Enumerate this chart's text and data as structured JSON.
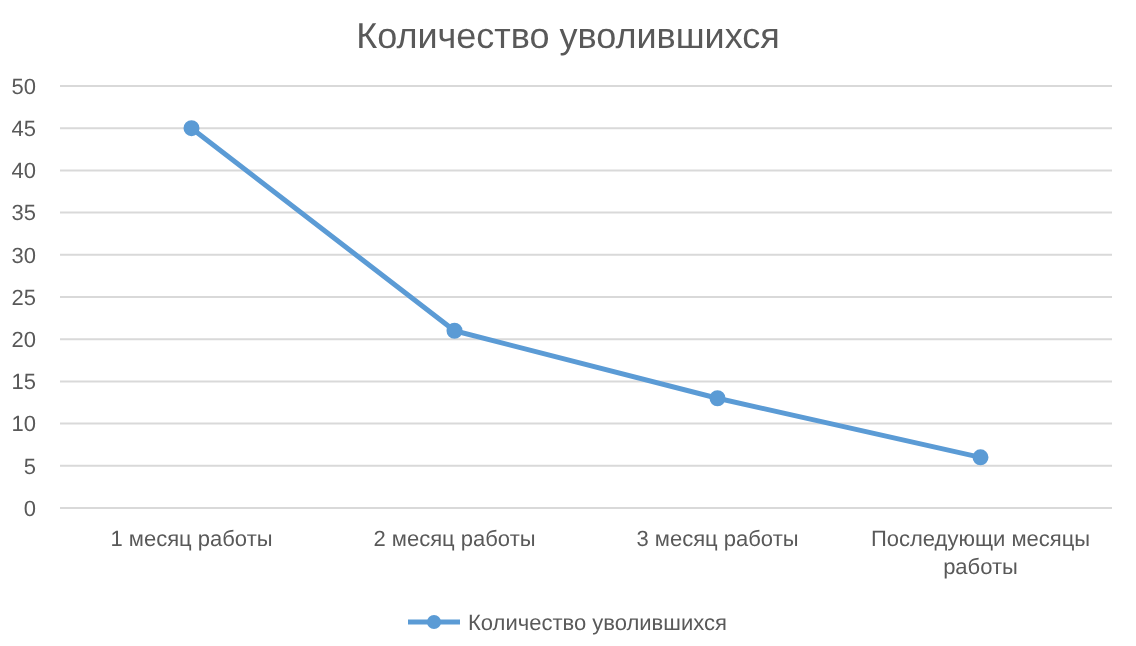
{
  "chart_data": {
    "type": "line",
    "title": "Количество уволившихся",
    "categories": [
      "1 месяц работы",
      "2 месяц работы",
      "3 месяц работы",
      "Последующи месяцы работы"
    ],
    "series": [
      {
        "name": "Количество уволившихся",
        "color": "#5b9bd5",
        "values": [
          45,
          21,
          13,
          6
        ]
      }
    ],
    "ylim": [
      0,
      50
    ],
    "yticks": [
      0,
      5,
      10,
      15,
      20,
      25,
      30,
      35,
      40,
      45,
      50
    ],
    "grid": "y",
    "legend": "bottom",
    "marker": "circle",
    "line_style": "solid"
  }
}
